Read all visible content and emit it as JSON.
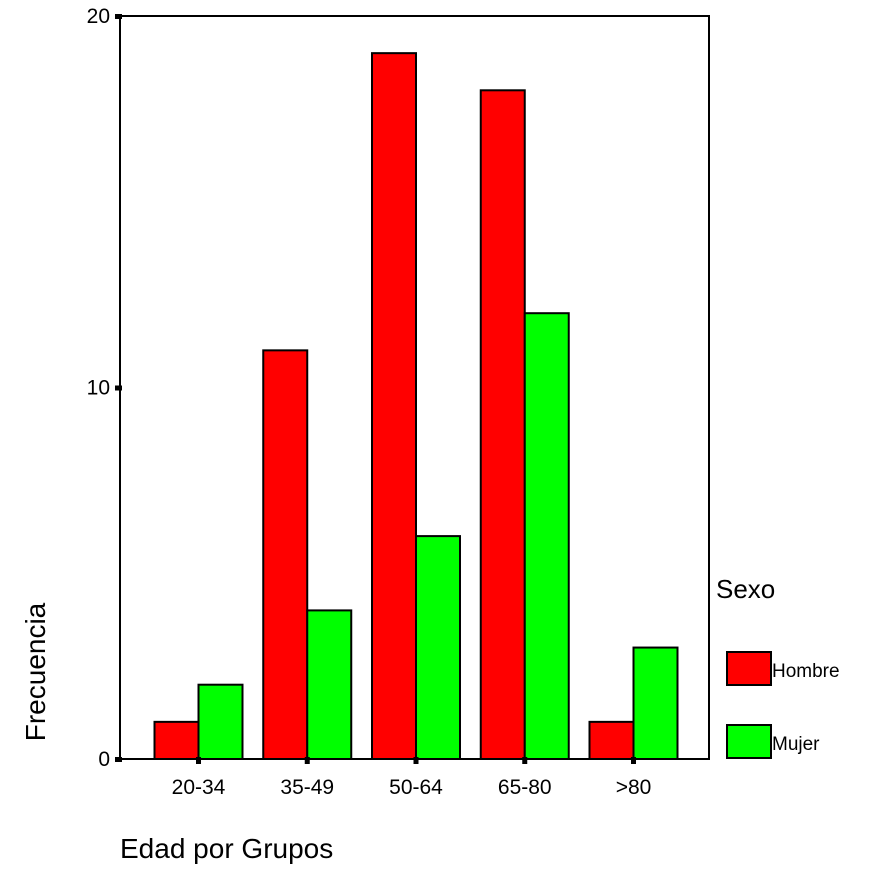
{
  "chart_data": {
    "type": "bar",
    "categories": [
      "20-34",
      "35-49",
      "50-64",
      "65-80",
      ">80"
    ],
    "series": [
      {
        "name": "Hombre",
        "values": [
          1,
          11,
          19,
          18,
          1
        ],
        "color": "#ff0000"
      },
      {
        "name": "Mujer",
        "values": [
          2,
          4,
          6,
          12,
          3
        ],
        "color": "#00ff00"
      }
    ],
    "xlabel": "Edad por Grupos",
    "ylabel": "Frecuencia",
    "ylim": [
      0,
      20
    ],
    "yticks": [
      0,
      10,
      20
    ],
    "legend_title": "Sexo",
    "legend_position": "right",
    "grid": false
  }
}
